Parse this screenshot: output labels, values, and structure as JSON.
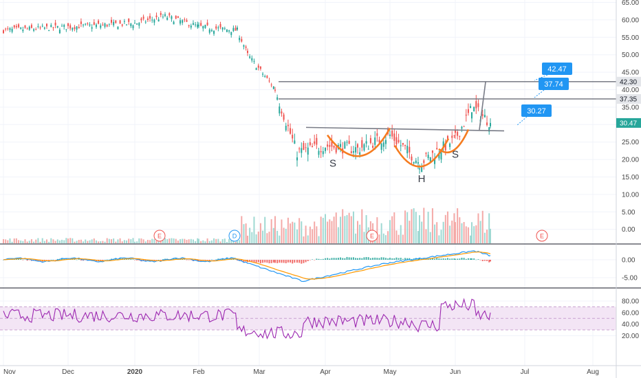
{
  "chart_data": {
    "type": "candlestick",
    "panes": {
      "price": {
        "y_ticks": [
          "65.00",
          "60.00",
          "55.00",
          "50.00",
          "45.00",
          "40.00",
          "35.00",
          "30.00",
          "25.00",
          "20.00",
          "15.00",
          "10.00",
          "5.00",
          "0.00"
        ],
        "y_range": [
          -4,
          66
        ],
        "ohlc_close_approx": [
          {
            "date": "Nov",
            "close": 57
          },
          {
            "date": "Dec",
            "close": 58
          },
          {
            "date": "2020",
            "close": 59
          },
          {
            "date": "Jan-mid",
            "close": 61
          },
          {
            "date": "Feb",
            "close": 58
          },
          {
            "date": "Feb-end",
            "close": 57
          },
          {
            "date": "Mar",
            "close": 50
          },
          {
            "date": "Mar-mid",
            "close": 40
          },
          {
            "date": "Mar-end",
            "close": 22
          },
          {
            "date": "Apr",
            "close": 24
          },
          {
            "date": "Apr-mid",
            "close": 23
          },
          {
            "date": "May",
            "close": 27
          },
          {
            "date": "May-mid",
            "close": 19
          },
          {
            "date": "Jun",
            "close": 26
          },
          {
            "date": "Jun-mid",
            "close": 35
          },
          {
            "date": "Jun-last",
            "close": 30.47
          }
        ],
        "last_price": "30.47",
        "horizontal_levels": [
          {
            "label": "42.30",
            "value": 42.3
          },
          {
            "label": "37.35",
            "value": 37.35
          }
        ],
        "price_callouts": [
          {
            "label": "42.47",
            "value": 42.47
          },
          {
            "label": "37.74",
            "value": 37.74
          },
          {
            "label": "30.27",
            "value": 30.27
          }
        ],
        "pattern_labels": [
          "S",
          "H",
          "S"
        ],
        "earnings_markers": [
          "E",
          "D",
          "E",
          "E"
        ]
      },
      "macd": {
        "y_ticks": [
          "0.00",
          "-5.00"
        ]
      },
      "rsi": {
        "y_ticks": [
          "80.00",
          "60.00",
          "40.00",
          "20.00"
        ],
        "band": [
          30,
          70
        ]
      }
    },
    "x_ticks": [
      "Nov",
      "Dec",
      "2020",
      "Feb",
      "Mar",
      "Apr",
      "May",
      "Jun",
      "Jul",
      "Aug"
    ]
  },
  "colors": {
    "up": "#26a69a",
    "down": "#ef5350",
    "pattern": "#f57c20",
    "neckline": "#787b86",
    "callout": "#2196f3",
    "rsi_line": "#9c27b0",
    "rsi_band": "#f3e5f5",
    "macd_line": "#2196f3",
    "signal_line": "#ff9800",
    "last_price_bg": "#26a69a"
  }
}
